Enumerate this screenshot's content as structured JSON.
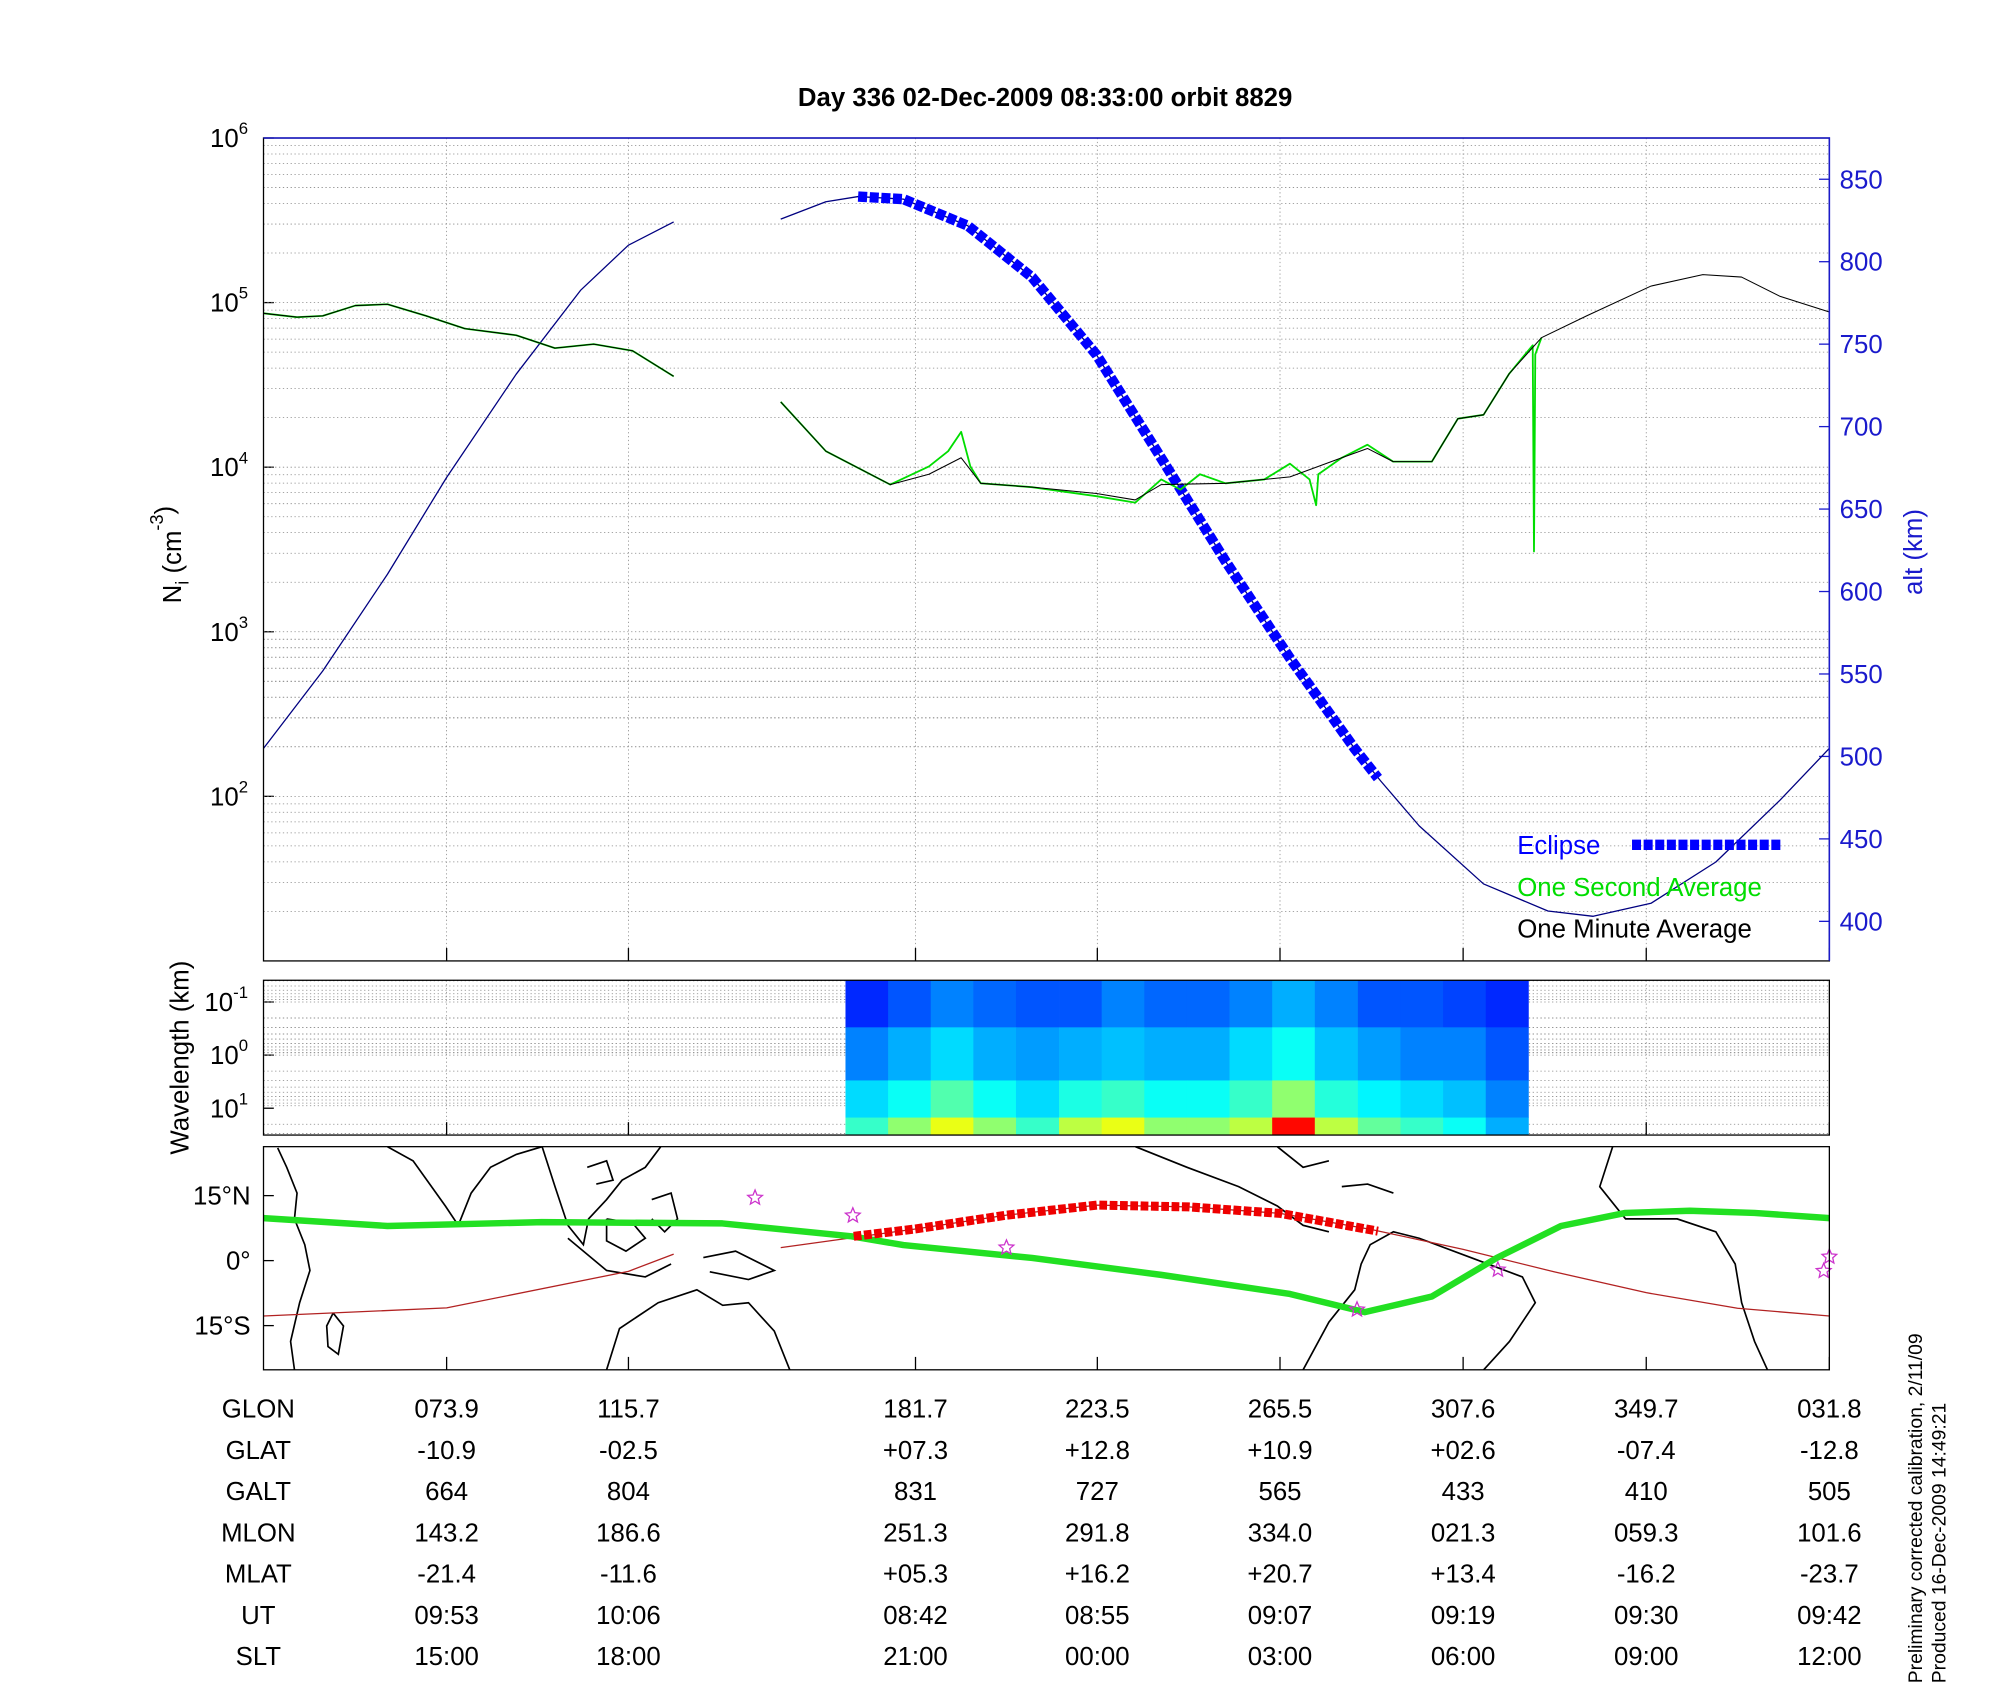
{
  "chart_data": [
    {
      "type": "line",
      "title": "Day 336  02-Dec-2009 08:33:00   orbit 8829",
      "y_label": [
        {
          "text": "N"
        },
        {
          "text": "i",
          "shift": "sub"
        },
        {
          "text": " (cm"
        },
        {
          "text": "-3",
          "shift": "super"
        },
        {
          "text": ")"
        }
      ],
      "y2_label": "alt (km)",
      "xlim": [
        31.8,
        391.8
      ],
      "xticks": [
        73.9,
        115.7,
        181.7,
        223.5,
        265.5,
        307.6,
        349.7,
        391.8
      ],
      "ylim": [
        10,
        1000000
      ],
      "log_y": true,
      "yticks": [
        {
          "value": 100,
          "label": "10",
          "exp": "2"
        },
        {
          "value": 1000,
          "label": "10",
          "exp": "3"
        },
        {
          "value": 10000,
          "label": "10",
          "exp": "4"
        },
        {
          "value": 100000,
          "label": "10",
          "exp": "5"
        },
        {
          "value": 1000000,
          "label": "10",
          "exp": "6"
        }
      ],
      "y2lim": [
        376,
        875
      ],
      "y2ticks": [
        400,
        450,
        500,
        550,
        600,
        650,
        700,
        750,
        800,
        850
      ],
      "y2_color": "#1a1acc",
      "grid": true,
      "legend": "lower right",
      "series": [
        {
          "axis": "y2",
          "color": "#000080",
          "line_width": 1,
          "x": [
            31.8,
            45.4,
            60.3,
            73.9,
            89.9,
            104.7,
            115.7,
            126.1,
            null,
            150.7,
            161.1,
            168.5,
            178.9,
            193.7,
            208.5,
            223.3,
            238.2,
            253,
            267.8,
            282.6,
            288.6,
            297.5,
            312.3,
            327.1,
            337.5,
            350.8,
            365.7,
            380.5,
            391.8
          ],
          "values": [
            504.9,
            551.8,
            610.5,
            669.2,
            731.8,
            782.6,
            810,
            824.1,
            null,
            825.8,
            836.4,
            839.5,
            837.9,
            821.8,
            790.5,
            743.5,
            680.9,
            618.3,
            559.6,
            504.9,
            485.3,
            457.9,
            422.7,
            406.3,
            403.1,
            411,
            436,
            473.6,
            504.9
          ]
        },
        {
          "name": "Eclipse",
          "axis": "y2",
          "color": "#0000ff",
          "line_width": 8,
          "dash": [
            7,
            2
          ],
          "x": [
            168.5,
            178.9,
            193.7,
            208.5,
            223.3,
            238.2,
            253,
            267.8,
            282.6,
            288
          ],
          "values": [
            839.5,
            837.9,
            821.8,
            790.5,
            743.5,
            680.9,
            618.3,
            559.6,
            504.9,
            486.9
          ]
        },
        {
          "name": "One Second Average",
          "color": "#00dd00",
          "line_width": 1.4,
          "x": [
            31.8,
            39.5,
            45.4,
            52.9,
            60.3,
            69.2,
            78.1,
            89.9,
            98.8,
            107.7,
            116.6,
            126.1,
            null,
            150.7,
            161.1,
            175.9,
            184.8,
            189.2,
            192.2,
            194.3,
            196.7,
            208.5,
            223.3,
            232.2,
            238.2,
            242.6,
            247.1,
            253,
            261.9,
            267.8,
            272.3,
            273.8,
            274.3,
            279.7,
            285.6,
            291.5,
            300.4,
            306.4,
            312.3,
            318.2,
            323.6,
            323.9,
            324.2,
            325.6
          ],
          "values": [
            86100,
            81600,
            83100,
            96000,
            97700,
            83100,
            69500,
            63400,
            52900,
            55900,
            51000,
            35600,
            null,
            24900,
            12500,
            7840,
            10100,
            12500,
            16400,
            10100,
            7980,
            7560,
            6660,
            6090,
            8430,
            7300,
            9060,
            7980,
            8430,
            10500,
            8430,
            5870,
            9060,
            11400,
            13700,
            10800,
            10800,
            19700,
            20800,
            37000,
            55000,
            3070,
            48400,
            61200
          ]
        },
        {
          "name": "One Minute Average",
          "color": "#000000",
          "line_width": 0.8,
          "x": [
            31.8,
            39.5,
            45.4,
            52.9,
            60.3,
            69.2,
            78.1,
            89.9,
            98.8,
            107.7,
            116.6,
            126.1,
            null,
            150.7,
            161.1,
            175.9,
            184.8,
            192.2,
            196.7,
            208.5,
            223.3,
            232.2,
            238.2,
            253,
            267.8,
            279.7,
            285.6,
            291.5,
            300.4,
            306.4,
            312.3,
            318.2,
            325.6,
            336,
            350.8,
            362.7,
            371.6,
            380.5,
            391.8
          ],
          "values": [
            86100,
            81600,
            83100,
            96000,
            97700,
            83100,
            69500,
            63400,
            52900,
            55900,
            51000,
            35600,
            null,
            24900,
            12500,
            7840,
            9060,
            11400,
            7980,
            7560,
            6920,
            6320,
            7840,
            7980,
            8740,
            11400,
            13000,
            10800,
            10800,
            19700,
            20800,
            37000,
            61200,
            83100,
            126000,
            148000,
            143000,
            109000,
            87700
          ]
        }
      ]
    },
    {
      "type": "heatmap",
      "y_label": "Wavelength (km)",
      "xlim": [
        31.8,
        391.8
      ],
      "xticks": [
        73.9,
        115.7,
        181.7,
        223.5,
        265.5,
        307.6,
        349.7,
        391.8
      ],
      "ylim": [
        32,
        0.039
      ],
      "log_y": true,
      "yticks": [
        {
          "value": 0.1,
          "label": "10",
          "exp": "-1"
        },
        {
          "value": 1,
          "label": "10",
          "exp": "0"
        },
        {
          "value": 10,
          "label": "10",
          "exp": "1"
        }
      ],
      "grid": true,
      "clim": [
        0,
        1
      ],
      "x_bins": [
        165.6,
        175.4,
        185.2,
        195.0,
        204.8,
        214.7,
        224.5,
        234.3,
        244.1,
        253.9,
        263.7,
        273.5,
        283.4,
        293.2,
        303.0,
        312.8,
        322.6
      ],
      "y_bins": [
        0.039,
        0.3,
        3,
        15,
        32
      ],
      "values": [
        [
          0.05,
          0.1,
          0.15,
          0.12,
          0.1,
          0.1,
          0.15,
          0.12,
          0.12,
          0.15,
          0.2,
          0.15,
          0.1,
          0.1,
          0.08,
          0.05
        ],
        [
          0.15,
          0.2,
          0.25,
          0.2,
          0.18,
          0.2,
          0.22,
          0.2,
          0.2,
          0.25,
          0.3,
          0.22,
          0.18,
          0.15,
          0.15,
          0.1
        ],
        [
          0.25,
          0.3,
          0.38,
          0.3,
          0.25,
          0.32,
          0.35,
          0.3,
          0.3,
          0.35,
          0.45,
          0.33,
          0.28,
          0.25,
          0.22,
          0.15
        ],
        [
          0.35,
          0.45,
          0.55,
          0.45,
          0.35,
          0.5,
          0.55,
          0.45,
          0.45,
          0.5,
          0.85,
          0.5,
          0.4,
          0.35,
          0.3,
          0.2
        ]
      ]
    },
    {
      "type": "map",
      "xlim": [
        31.8,
        391.8
      ],
      "xticks": [
        73.9,
        115.7,
        181.7,
        223.5,
        265.5,
        307.6,
        349.7,
        391.8
      ],
      "ylim": [
        -25.2,
        26.3
      ],
      "yticks": [
        {
          "value": -15,
          "label": "15°S"
        },
        {
          "value": 0,
          "label": "0°"
        },
        {
          "value": 15,
          "label": "15°N"
        }
      ],
      "series": [
        {
          "color": "#b22222",
          "line_width": 1,
          "x": [
            31.8,
            73.9,
            115.7,
            126.1,
            null,
            150.7,
            181.7,
            202.6,
            223.5,
            244.5,
            265.5,
            286.5,
            307.6,
            328.6,
            349.7,
            370.7,
            391.8
          ],
          "values": [
            -12.8,
            -10.9,
            -2.5,
            1.5,
            null,
            3.0,
            7.3,
            10.5,
            12.8,
            12.4,
            10.9,
            7.2,
            2.6,
            -2.6,
            -7.4,
            -11.0,
            -12.8
          ]
        },
        {
          "color": "#22e022",
          "line_width": 5,
          "x": [
            31.8,
            60.3,
            95.8,
            137.3,
            167,
            178.9,
            208.5,
            238.2,
            267.8,
            285,
            300.4,
            315.3,
            330.1,
            344.9,
            359.7,
            374.6,
            391.8
          ],
          "values": [
            9.8,
            8.0,
            8.9,
            8.6,
            5.6,
            3.6,
            0.6,
            -3.3,
            -7.7,
            -11.9,
            -8.3,
            0.6,
            8.0,
            11.0,
            11.5,
            11.0,
            9.8
          ]
        },
        {
          "color": "#ee0000",
          "line_width": 7,
          "dash": [
            6,
            2
          ],
          "x": [
            167.5,
            181.7,
            202.6,
            223.5,
            244.5,
            265.5,
            288
          ],
          "values": [
            5.6,
            7.3,
            10.5,
            12.8,
            12.4,
            10.9,
            6.8
          ]
        },
        {
          "type": "scatter",
          "color": "#cc33cc",
          "x": [
            144.8,
            167.3,
            202.6,
            283.2,
            315.6,
            391.8,
            390.5
          ],
          "values": [
            14.5,
            10.4,
            3.0,
            -11.3,
            -2.1,
            0.9,
            -2.4
          ]
        }
      ]
    }
  ],
  "table": {
    "rows": [
      {
        "label": "GLON",
        "values": [
          "073.9",
          "115.7",
          "181.7",
          "223.5",
          "265.5",
          "307.6",
          "349.7",
          "031.8"
        ]
      },
      {
        "label": "GLAT",
        "values": [
          "-10.9",
          "-02.5",
          "+07.3",
          "+12.8",
          "+10.9",
          "+02.6",
          "-07.4",
          "-12.8"
        ]
      },
      {
        "label": "GALT",
        "values": [
          "664",
          "804",
          "831",
          "727",
          "565",
          "433",
          "410",
          "505"
        ]
      },
      {
        "label": "MLON",
        "values": [
          "143.2",
          "186.6",
          "251.3",
          "291.8",
          "334.0",
          "021.3",
          "059.3",
          "101.6"
        ]
      },
      {
        "label": "MLAT",
        "values": [
          "-21.4",
          "-11.6",
          "+05.3",
          "+16.2",
          "+20.7",
          "+13.4",
          "-16.2",
          "-23.7"
        ]
      },
      {
        "label": "UT",
        "values": [
          "09:53",
          "10:06",
          "08:42",
          "08:55",
          "09:07",
          "09:19",
          "09:30",
          "09:42"
        ]
      },
      {
        "label": "SLT",
        "values": [
          "15:00",
          "18:00",
          "21:00",
          "00:00",
          "03:00",
          "06:00",
          "09:00",
          "12:00"
        ]
      }
    ]
  },
  "footer": [
    "Preliminary corrected calibration, 2/11/09",
    "Produced 16-Dec-2009 14:49:21"
  ]
}
